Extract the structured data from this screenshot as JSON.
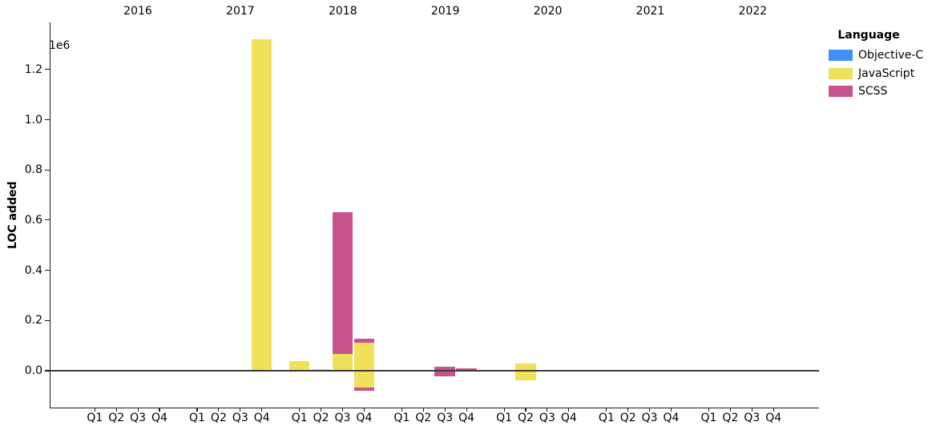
{
  "chart_data": {
    "type": "bar",
    "stacked": true,
    "ylabel": "LOC added",
    "y_offset_label": "1e6",
    "grid": false,
    "ylim": [
      -147000,
      1387000
    ],
    "y_ticks": [
      {
        "value": 0,
        "label": "0.0"
      },
      {
        "value": 200000,
        "label": "0.2"
      },
      {
        "value": 400000,
        "label": "0.4"
      },
      {
        "value": 600000,
        "label": "0.6"
      },
      {
        "value": 800000,
        "label": "0.8"
      },
      {
        "value": 1000000,
        "label": "1.0"
      },
      {
        "value": 1200000,
        "label": "1.2"
      }
    ],
    "years": [
      "2016",
      "2017",
      "2018",
      "2019",
      "2020",
      "2021",
      "2022"
    ],
    "quarters": [
      "Q1",
      "Q2",
      "Q3",
      "Q4"
    ],
    "legend": {
      "title": "Language",
      "position": "upper right, outside plot",
      "entries": [
        {
          "label": "Objective-C",
          "color": "#438eff"
        },
        {
          "label": "JavaScript",
          "color": "#f1e05a"
        },
        {
          "label": "SCSS",
          "color": "#c6538c"
        }
      ]
    },
    "bars": [
      {
        "year": "2017",
        "quarter": "Q4",
        "segments": [
          {
            "language": "JavaScript",
            "value": 1322000
          }
        ]
      },
      {
        "year": "2018",
        "quarter": "Q1",
        "segments": [
          {
            "language": "JavaScript",
            "value": 37000
          }
        ]
      },
      {
        "year": "2018",
        "quarter": "Q2",
        "segments": [
          {
            "language": "JavaScript",
            "value": 6000
          }
        ]
      },
      {
        "year": "2018",
        "quarter": "Q3",
        "segments": [
          {
            "language": "JavaScript",
            "value": 68000
          },
          {
            "language": "SCSS",
            "value": 565000
          }
        ]
      },
      {
        "year": "2018",
        "quarter": "Q4",
        "segments": [
          {
            "language": "JavaScript",
            "value": 111000
          },
          {
            "language": "SCSS",
            "value": 16000
          },
          {
            "language": "JavaScript",
            "value": -66000
          },
          {
            "language": "SCSS",
            "value": -13000
          }
        ]
      },
      {
        "year": "2019",
        "quarter": "Q3",
        "segments": [
          {
            "language": "SCSS",
            "value": 17000
          },
          {
            "language": "SCSS",
            "value": -21000
          }
        ]
      },
      {
        "year": "2019",
        "quarter": "Q4",
        "segments": [
          {
            "language": "SCSS",
            "value": 11000
          }
        ]
      },
      {
        "year": "2020",
        "quarter": "Q2",
        "segments": [
          {
            "language": "JavaScript",
            "value": 29000
          },
          {
            "language": "JavaScript",
            "value": -37000
          }
        ]
      },
      {
        "year": "2021",
        "quarter": "Q3",
        "segments": [
          {
            "language": "SCSS",
            "value": 4000
          }
        ]
      }
    ]
  }
}
